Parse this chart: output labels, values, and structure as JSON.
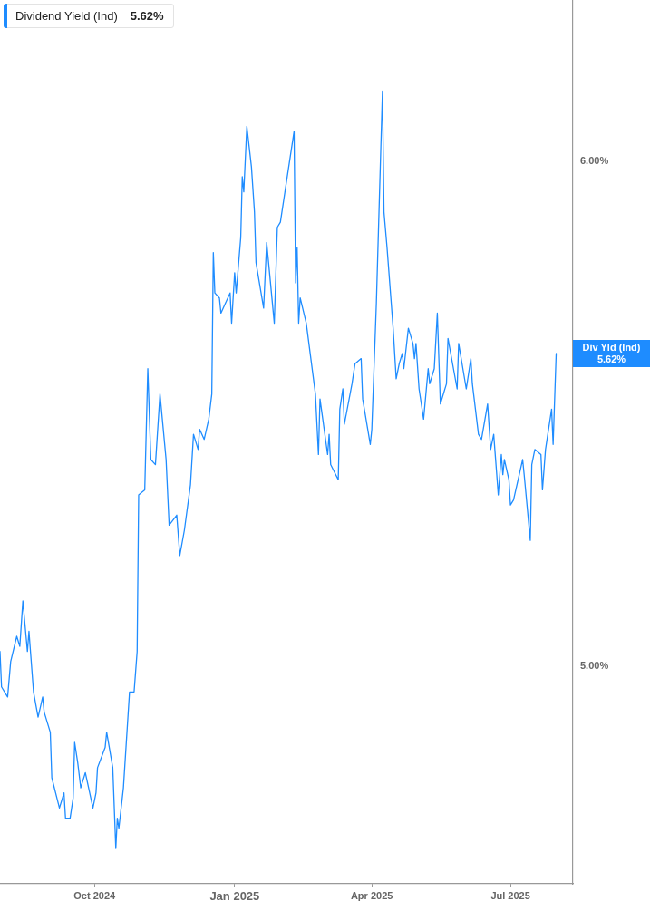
{
  "chart_data": {
    "type": "line",
    "x": [
      "2024-07-31",
      "2024-08-01",
      "2024-08-05",
      "2024-08-07",
      "2024-08-11",
      "2024-08-13",
      "2024-08-15",
      "2024-08-18",
      "2024-08-19",
      "2024-08-22",
      "2024-08-25",
      "2024-08-28",
      "2024-08-29",
      "2024-09-02",
      "2024-09-03",
      "2024-09-08",
      "2024-09-11",
      "2024-09-12",
      "2024-09-15",
      "2024-09-17",
      "2024-09-18",
      "2024-09-20",
      "2024-09-22",
      "2024-09-25",
      "2024-09-30",
      "2024-10-02",
      "2024-10-03",
      "2024-10-08",
      "2024-10-09",
      "2024-10-13",
      "2024-10-15",
      "2024-10-16",
      "2024-10-17",
      "2024-10-20",
      "2024-10-24",
      "2024-10-27",
      "2024-10-29",
      "2024-10-30",
      "2024-11-03",
      "2024-11-05",
      "2024-11-07",
      "2024-11-10",
      "2024-11-13",
      "2024-11-17",
      "2024-11-19",
      "2024-11-24",
      "2024-11-26",
      "2024-11-29",
      "2024-12-03",
      "2024-12-05",
      "2024-12-08",
      "2024-12-09",
      "2024-12-12",
      "2024-12-15",
      "2024-12-17",
      "2024-12-18",
      "2024-12-19",
      "2024-12-22",
      "2024-12-23",
      "2024-12-26",
      "2024-12-29",
      "2024-12-30",
      "2025-01-01",
      "2025-01-02",
      "2025-01-05",
      "2025-01-06",
      "2025-01-07",
      "2025-01-09",
      "2025-01-12",
      "2025-01-14",
      "2025-01-15",
      "2025-01-20",
      "2025-01-22",
      "2025-01-27",
      "2025-01-29",
      "2025-01-31",
      "2025-02-03",
      "2025-02-09",
      "2025-02-10",
      "2025-02-11",
      "2025-02-12",
      "2025-02-13",
      "2025-02-17",
      "2025-02-23",
      "2025-02-25",
      "2025-02-26",
      "2025-03-03",
      "2025-03-04",
      "2025-03-05",
      "2025-03-10",
      "2025-03-11",
      "2025-03-13",
      "2025-03-14",
      "2025-03-19",
      "2025-03-21",
      "2025-03-25",
      "2025-03-26",
      "2025-03-31",
      "2025-04-01",
      "2025-04-04",
      "2025-04-08",
      "2025-04-09",
      "2025-04-11",
      "2025-04-15",
      "2025-04-17",
      "2025-04-19",
      "2025-04-21",
      "2025-04-22",
      "2025-04-25",
      "2025-04-28",
      "2025-04-29",
      "2025-04-30",
      "2025-05-02",
      "2025-05-05",
      "2025-05-08",
      "2025-05-09",
      "2025-05-12",
      "2025-05-14",
      "2025-05-16",
      "2025-05-20",
      "2025-05-21",
      "2025-05-27",
      "2025-05-28",
      "2025-06-02",
      "2025-06-05",
      "2025-06-06",
      "2025-06-10",
      "2025-06-12",
      "2025-06-16",
      "2025-06-18",
      "2025-06-20",
      "2025-06-23",
      "2025-06-25",
      "2025-06-26",
      "2025-06-27",
      "2025-06-30",
      "2025-07-01",
      "2025-07-03",
      "2025-07-09",
      "2025-07-10",
      "2025-07-14",
      "2025-07-15",
      "2025-07-17",
      "2025-07-21",
      "2025-07-22",
      "2025-07-24",
      "2025-07-28",
      "2025-07-29",
      "2025-07-31"
    ],
    "series": [
      {
        "name": "Dividend Yield (Ind)",
        "color": "#1e8cff",
        "values": [
          5.03,
          4.96,
          4.94,
          5.01,
          5.06,
          5.04,
          5.13,
          5.03,
          5.07,
          4.95,
          4.9,
          4.94,
          4.91,
          4.87,
          4.78,
          4.72,
          4.75,
          4.7,
          4.7,
          4.74,
          4.85,
          4.81,
          4.76,
          4.79,
          4.72,
          4.75,
          4.8,
          4.84,
          4.87,
          4.8,
          4.64,
          4.7,
          4.68,
          4.76,
          4.95,
          4.95,
          5.03,
          5.34,
          5.35,
          5.59,
          5.41,
          5.4,
          5.54,
          5.41,
          5.28,
          5.3,
          5.22,
          5.27,
          5.36,
          5.46,
          5.43,
          5.47,
          5.45,
          5.49,
          5.54,
          5.82,
          5.74,
          5.73,
          5.7,
          5.72,
          5.74,
          5.68,
          5.78,
          5.74,
          5.85,
          5.97,
          5.94,
          6.07,
          5.99,
          5.9,
          5.8,
          5.71,
          5.84,
          5.68,
          5.87,
          5.88,
          5.94,
          6.06,
          5.76,
          5.83,
          5.68,
          5.73,
          5.68,
          5.54,
          5.42,
          5.53,
          5.42,
          5.46,
          5.4,
          5.37,
          5.51,
          5.55,
          5.48,
          5.56,
          5.6,
          5.61,
          5.53,
          5.44,
          5.47,
          5.72,
          6.14,
          5.9,
          5.83,
          5.67,
          5.57,
          5.6,
          5.62,
          5.59,
          5.67,
          5.64,
          5.61,
          5.64,
          5.55,
          5.49,
          5.59,
          5.56,
          5.59,
          5.7,
          5.52,
          5.56,
          5.65,
          5.55,
          5.64,
          5.55,
          5.61,
          5.56,
          5.46,
          5.45,
          5.52,
          5.43,
          5.46,
          5.34,
          5.42,
          5.38,
          5.41,
          5.37,
          5.32,
          5.33,
          5.41,
          5.38,
          5.25,
          5.4,
          5.43,
          5.42,
          5.35,
          5.43,
          5.51,
          5.44,
          5.62
        ]
      }
    ],
    "xlim": [
      "2024-07-31",
      "2025-08-11"
    ],
    "xticks": [
      {
        "value": "2024-10-01",
        "label": "Oct 2024"
      },
      {
        "value": "2025-01-01",
        "label": "Jan 2025"
      },
      {
        "value": "2025-04-01",
        "label": "Apr 2025"
      },
      {
        "value": "2025-07-01",
        "label": "Jul 2025"
      }
    ],
    "ylim": [
      4.57,
      6.32
    ],
    "yticks": [
      {
        "value": 5,
        "label": "5.00%"
      },
      {
        "value": 6,
        "label": "6.00%"
      }
    ],
    "annotations": [
      {
        "text": "Div Yld (Ind) 5.62%",
        "x": "2025-07-31",
        "y": 5.62
      },
      "5.62%"
    ],
    "legend": "top left"
  }
}
